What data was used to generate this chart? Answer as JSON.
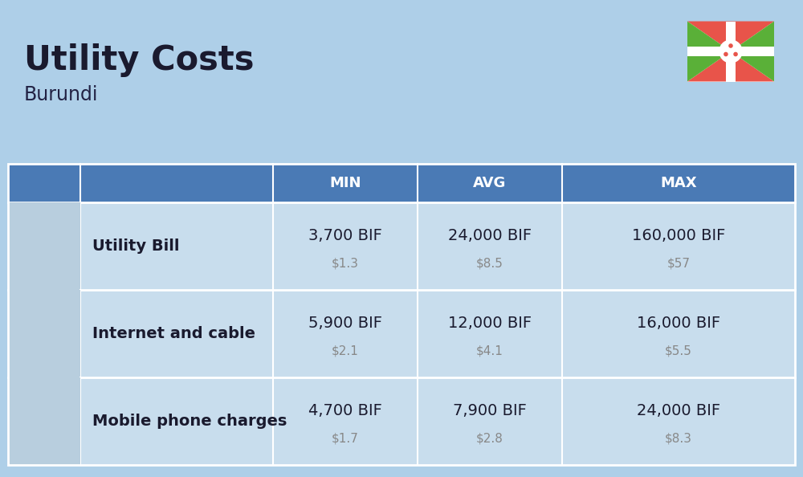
{
  "title": "Utility Costs",
  "subtitle": "Burundi",
  "background_color": "#aecfe8",
  "header_bg_color": "#4a7ab5",
  "header_text_color": "#ffffff",
  "row_bg_even": "#c8dded",
  "row_bg_odd": "#b8cfde",
  "icon_col_bg": "#b8cede",
  "label_col_bg": "#ccdded",
  "col_headers": [
    "MIN",
    "AVG",
    "MAX"
  ],
  "rows": [
    {
      "label": "Utility Bill",
      "min_bif": "3,700 BIF",
      "min_usd": "$1.3",
      "avg_bif": "24,000 BIF",
      "avg_usd": "$8.5",
      "max_bif": "160,000 BIF",
      "max_usd": "$57"
    },
    {
      "label": "Internet and cable",
      "min_bif": "5,900 BIF",
      "min_usd": "$2.1",
      "avg_bif": "12,000 BIF",
      "avg_usd": "$4.1",
      "max_bif": "16,000 BIF",
      "max_usd": "$5.5"
    },
    {
      "label": "Mobile phone charges",
      "min_bif": "4,700 BIF",
      "min_usd": "$1.7",
      "avg_bif": "7,900 BIF",
      "avg_usd": "$2.8",
      "max_bif": "24,000 BIF",
      "max_usd": "$8.3"
    }
  ],
  "title_fontsize": 30,
  "subtitle_fontsize": 17,
  "header_fontsize": 13,
  "label_fontsize": 14,
  "value_fontsize": 14,
  "usd_fontsize": 11,
  "flag_red": "#e8544a",
  "flag_green": "#5ab038",
  "flag_white": "#ffffff"
}
